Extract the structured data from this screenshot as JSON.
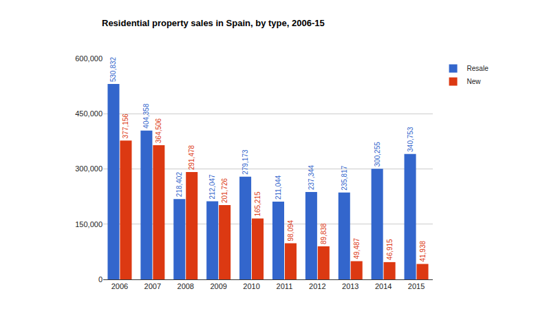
{
  "chart_data": {
    "type": "bar",
    "title": "Residential property sales in Spain, by type, 2006-15",
    "categories": [
      "2006",
      "2007",
      "2008",
      "2009",
      "2010",
      "2011",
      "2012",
      "2013",
      "2014",
      "2015"
    ],
    "series": [
      {
        "name": "Resale",
        "color": "#3366cc",
        "values": [
          530832,
          404358,
          218402,
          212047,
          279173,
          211044,
          237344,
          235817,
          300255,
          340753
        ],
        "value_labels": [
          "530,832",
          "404,358",
          "218,402",
          "212,047",
          "279,173",
          "211,044",
          "237,344",
          "235,817",
          "300,255",
          "340,753"
        ]
      },
      {
        "name": "New",
        "color": "#dc3912",
        "values": [
          377156,
          364506,
          291478,
          201726,
          165215,
          98094,
          89838,
          49487,
          46915,
          41938
        ],
        "value_labels": [
          "377,156",
          "364,506",
          "291,478",
          "201,726",
          "165,215",
          "98,094",
          "89,838",
          "49,487",
          "46,915",
          "41,938"
        ]
      }
    ],
    "ylim": [
      0,
      600000
    ],
    "yticks": [
      0,
      {
        "value": 150000,
        "label": "150,000"
      },
      {
        "value": 300000,
        "label": "300,000"
      },
      {
        "value": 450000,
        "label": "450,000"
      },
      {
        "value": 600000,
        "label": "600,000"
      }
    ],
    "grid": true,
    "legend": "top right",
    "data_labels": true
  }
}
